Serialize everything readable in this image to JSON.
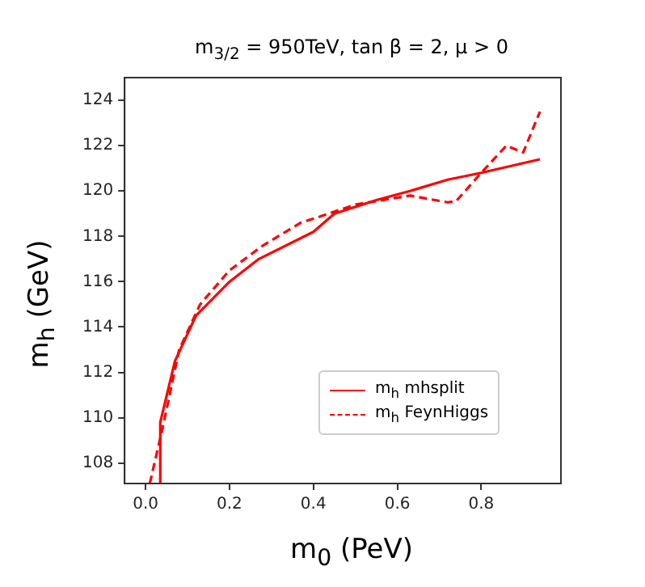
{
  "chart_data": {
    "type": "line",
    "title": "m$_{3/2}$ = 950TeV, tan β = 2, μ > 0",
    "xlabel": "m$_{0}$  (PeV)",
    "ylabel": "m$_{h}$  (GeV)",
    "xlim": [
      -0.05,
      0.99
    ],
    "xticks": [
      {
        "value": 0,
        "label": "0.0"
      },
      0.2,
      0.4,
      0.6,
      0.8
    ],
    "ylim": [
      107.1,
      125
    ],
    "yticks": [
      108,
      110,
      112,
      114,
      116,
      118,
      120,
      122,
      124
    ],
    "grid": false,
    "legend": "right",
    "marker": "none",
    "series": [
      {
        "name": "m$_{h}$ mhsplit",
        "color": "#ff0000",
        "line_style": "solid",
        "x": [
          0.035,
          0.035,
          0.07,
          0.12,
          0.2,
          0.27,
          0.4,
          0.45,
          0.55,
          0.63,
          0.72,
          0.8,
          0.94
        ],
        "values": [
          107.1,
          109.8,
          112.5,
          114.5,
          116,
          117,
          118.2,
          119,
          119.6,
          120,
          120.5,
          120.8,
          121.4
        ]
      },
      {
        "name": "m$_{h}$ FeynHiggs",
        "color": "#ff0000",
        "line_style": "dashed",
        "x": [
          0.01,
          0.04,
          0.08,
          0.13,
          0.2,
          0.28,
          0.37,
          0.42,
          0.5,
          0.63,
          0.72,
          0.74,
          0.8,
          0.86,
          0.9,
          0.94
        ],
        "values": [
          107.1,
          109.5,
          113,
          115,
          116.5,
          117.6,
          118.6,
          118.9,
          119.4,
          119.8,
          119.5,
          119.55,
          120.8,
          122,
          121.7,
          123.5
        ]
      }
    ]
  }
}
